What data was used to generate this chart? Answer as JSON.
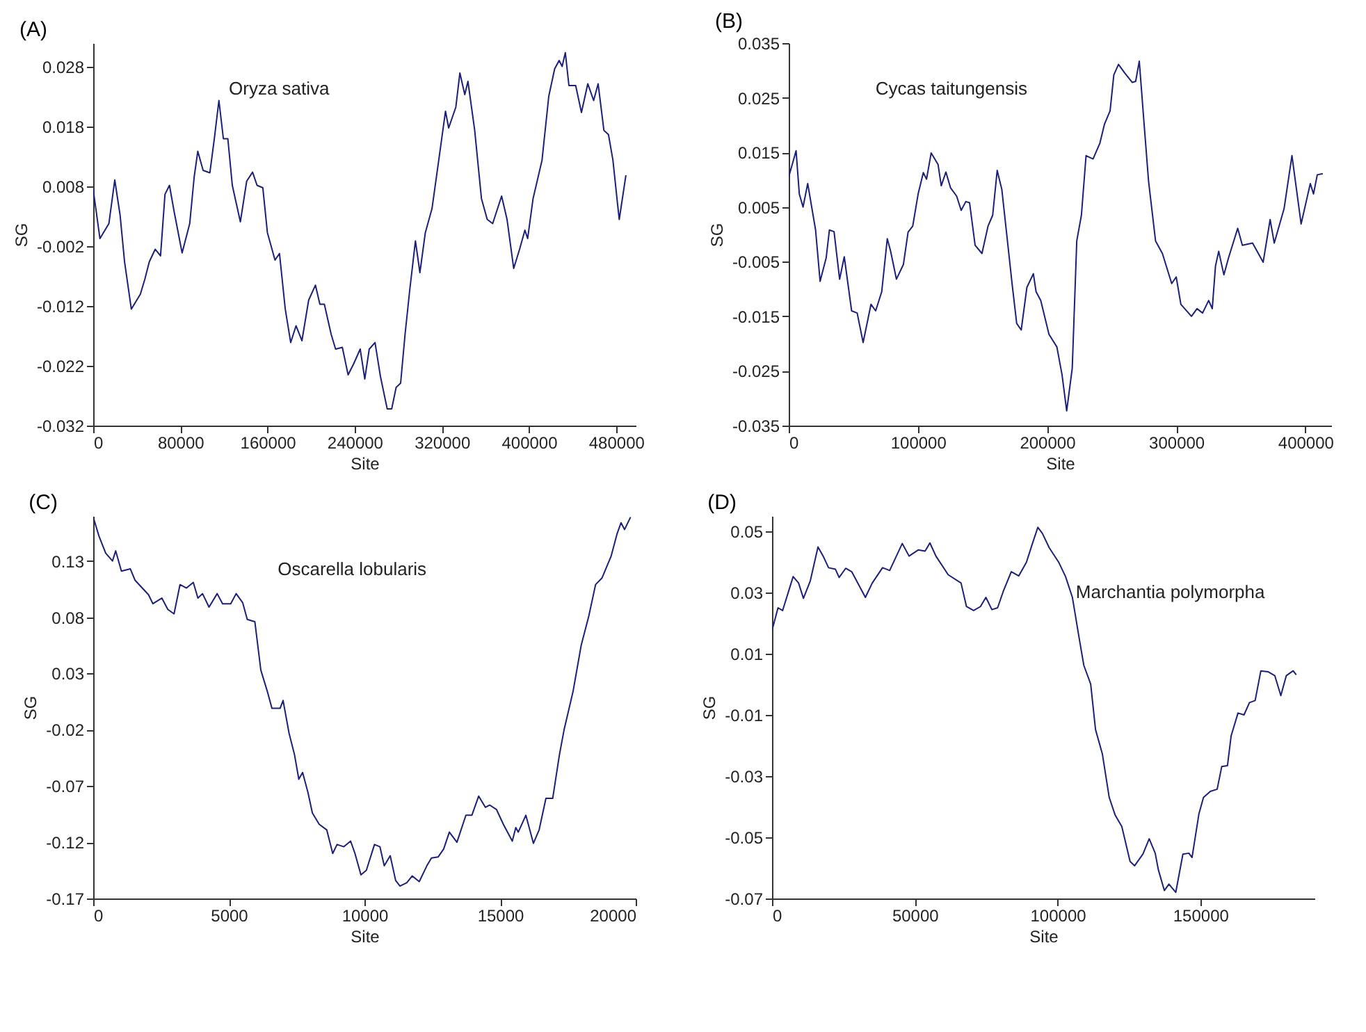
{
  "chart_data": [
    {
      "type": "line",
      "title": "(A)",
      "xlabel": "Site",
      "ylabel": "SG",
      "annotations": [
        "Oryza sativa"
      ],
      "xlim": [
        0,
        498000
      ],
      "xticks": [
        0,
        80000,
        160000,
        240000,
        320000,
        400000,
        480000
      ],
      "ylim": [
        -0.032,
        0.032
      ],
      "yticks": [
        -0.032,
        -0.022,
        -0.012,
        -0.002,
        0.008,
        0.018,
        0.028
      ],
      "grid": false,
      "series": [
        {
          "color": "#1c1f7a",
          "x": [
            0,
            6200,
            14400,
            19800,
            24700,
            28800,
            35000,
            43300,
            47400,
            51500,
            56900,
            61800,
            65900,
            70000,
            74200,
            81600,
            88600,
            92700,
            96000,
            100900,
            107100,
            111200,
            115400,
            119500,
            123600,
            127700,
            135100,
            140900,
            146300,
            150400,
            155700,
            159900,
            166900,
            171000,
            176300,
            181300,
            186200,
            191600,
            197800,
            204000,
            208100,
            212200,
            218400,
            222500,
            228700,
            234000,
            239000,
            245100,
            249300,
            253400,
            258700,
            263700,
            269900,
            274000,
            278100,
            282200,
            286300,
            290400,
            295800,
            299900,
            304900,
            311000,
            317200,
            323400,
            326300,
            332900,
            336600,
            341100,
            344000,
            350200,
            356400,
            361700,
            366700,
            374900,
            379900,
            386000,
            391400,
            396300,
            398800,
            403800,
            412000,
            418200,
            423600,
            427700,
            430500,
            433400,
            436700,
            442900,
            448200,
            454000,
            459400,
            463500,
            468800,
            473000,
            477100,
            481200,
            482900,
            489000
          ],
          "values": [
            0.0075,
            -0.0007,
            0.0018,
            0.0091,
            0.0032,
            -0.0046,
            -0.0125,
            -0.01,
            -0.0075,
            -0.0046,
            -0.0025,
            -0.0036,
            0.0067,
            0.0082,
            0.0039,
            -0.0031,
            0.0018,
            0.0096,
            0.0139,
            0.0107,
            0.0103,
            0.016,
            0.0224,
            0.016,
            0.016,
            0.0082,
            0.0021,
            0.0089,
            0.0104,
            0.0082,
            0.0078,
            0.0003,
            -0.0043,
            -0.0032,
            -0.0125,
            -0.0181,
            -0.0153,
            -0.0178,
            -0.011,
            -0.0085,
            -0.0117,
            -0.0117,
            -0.0167,
            -0.0192,
            -0.0189,
            -0.0235,
            -0.0217,
            -0.0192,
            -0.0242,
            -0.0192,
            -0.0181,
            -0.0238,
            -0.0292,
            -0.0292,
            -0.0256,
            -0.0249,
            -0.0167,
            -0.0096,
            -0.0011,
            -0.0064,
            0.0003,
            0.0043,
            0.0124,
            0.0206,
            0.0178,
            0.0213,
            0.027,
            0.0234,
            0.0256,
            0.0174,
            0.006,
            0.0025,
            0.0018,
            0.0064,
            0.0025,
            -0.0057,
            -0.0025,
            0.0007,
            -0.0007,
            0.006,
            0.0124,
            0.0231,
            0.0277,
            0.0291,
            0.0281,
            0.0304,
            0.0249,
            0.0249,
            0.0204,
            0.0252,
            0.0224,
            0.0252,
            0.0174,
            0.0167,
            0.0124,
            0.0053,
            0.0025,
            0.0099
          ]
        }
      ]
    },
    {
      "type": "line",
      "title": "(B)",
      "xlabel": "Site",
      "ylabel": "SG",
      "annotations": [
        "Cycas taitungensis"
      ],
      "xlim": [
        0,
        420000
      ],
      "xticks": [
        0,
        100000,
        200000,
        300000,
        400000
      ],
      "ylim": [
        -0.035,
        0.035
      ],
      "yticks": [
        -0.035,
        -0.025,
        -0.015,
        -0.005,
        0.005,
        0.015,
        0.025,
        0.035
      ],
      "grid": false,
      "series": [
        {
          "color": "#1c1f7a",
          "x": [
            0,
            5700,
            8200,
            11100,
            14700,
            20800,
            24300,
            29000,
            31500,
            35100,
            39400,
            43000,
            48700,
            53000,
            57600,
            63700,
            67300,
            72000,
            76300,
            78800,
            83400,
            88800,
            92400,
            96000,
            100200,
            104200,
            106700,
            110300,
            115600,
            118100,
            121700,
            125300,
            130000,
            133500,
            137100,
            140000,
            144300,
            149600,
            154300,
            157900,
            161400,
            165000,
            168600,
            172900,
            176500,
            180000,
            184400,
            189400,
            191500,
            195100,
            201500,
            207600,
            211600,
            215200,
            219500,
            223000,
            226600,
            230200,
            235600,
            240900,
            244500,
            248800,
            251700,
            255300,
            259900,
            266000,
            268600,
            271400,
            275000,
            278600,
            284000,
            289300,
            296500,
            300000,
            303600,
            311800,
            316100,
            320400,
            325100,
            327900,
            330400,
            332900,
            336900,
            340500,
            347600,
            351200,
            359100,
            367300,
            372700,
            375900,
            383500,
            389600,
            396700,
            401300,
            403800,
            406300,
            409200,
            413500
          ],
          "values": [
            0.0105,
            0.0153,
            0.0074,
            0.005,
            0.0093,
            0.0008,
            -0.0086,
            -0.0043,
            0.0008,
            0.0005,
            -0.0082,
            -0.0041,
            -0.014,
            -0.0144,
            -0.0198,
            -0.0128,
            -0.014,
            -0.0105,
            -0.0008,
            -0.003,
            -0.0082,
            -0.0055,
            0.0004,
            0.0015,
            0.0074,
            0.0113,
            0.0101,
            0.0149,
            0.0128,
            0.0089,
            0.0114,
            0.0085,
            0.007,
            0.0044,
            0.006,
            0.0058,
            -0.002,
            -0.0035,
            0.0015,
            0.0035,
            0.0117,
            0.0082,
            0.0004,
            -0.009,
            -0.0163,
            -0.0175,
            -0.0097,
            -0.0072,
            -0.0105,
            -0.0121,
            -0.0183,
            -0.0206,
            -0.0257,
            -0.0323,
            -0.0245,
            -0.0012,
            0.0035,
            0.0144,
            0.0138,
            0.0167,
            0.0202,
            0.0226,
            0.0292,
            0.0311,
            0.0296,
            0.0278,
            0.028,
            0.0317,
            0.0206,
            0.0097,
            -0.0012,
            -0.0035,
            -0.009,
            -0.0078,
            -0.0128,
            -0.015,
            -0.0136,
            -0.0144,
            -0.0121,
            -0.0136,
            -0.0058,
            -0.0031,
            -0.0074,
            -0.0043,
            0.0011,
            -0.002,
            -0.0016,
            -0.0051,
            0.0027,
            -0.0016,
            0.0047,
            0.0144,
            0.0019,
            0.0067,
            0.0093,
            0.0074,
            0.0109,
            0.0111
          ]
        }
      ]
    },
    {
      "type": "line",
      "title": "(C)",
      "xlabel": "Site",
      "ylabel": "SG",
      "annotations": [
        "Oscarella lobularis"
      ],
      "xlim": [
        0,
        20000
      ],
      "xticks": [
        0,
        5000,
        10000,
        15000,
        20000
      ],
      "ylim": [
        -0.17,
        0.17
      ],
      "yticks": [
        -0.17,
        -0.12,
        -0.07,
        -0.02,
        0.03,
        0.08,
        0.13
      ],
      "grid": false,
      "series": [
        {
          "color": "#1c1f7a",
          "x": [
            0,
            215,
            460,
            710,
            830,
            1040,
            1370,
            1540,
            2040,
            2200,
            2530,
            2750,
            2980,
            3200,
            3440,
            3690,
            3860,
            4030,
            4270,
            4570,
            4770,
            5070,
            5270,
            5510,
            5680,
            5960,
            6180,
            6420,
            6590,
            6890,
            7000,
            7220,
            7420,
            7580,
            7720,
            7920,
            8080,
            8330,
            8610,
            8830,
            8990,
            9240,
            9490,
            9650,
            9870,
            10070,
            10370,
            10570,
            10730,
            10950,
            11150,
            11310,
            11560,
            11760,
            12020,
            12300,
            12470,
            12720,
            12920,
            13130,
            13410,
            13740,
            13960,
            14210,
            14460,
            14620,
            14870,
            15120,
            15450,
            15580,
            15670,
            15950,
            16230,
            16440,
            16690,
            16940,
            17190,
            17360,
            17690,
            17990,
            18270,
            18520,
            18760,
            19090,
            19310,
            19460,
            19590,
            19810
          ],
          "values": [
            0.169,
            0.152,
            0.137,
            0.13,
            0.139,
            0.121,
            0.123,
            0.113,
            0.1,
            0.092,
            0.097,
            0.087,
            0.083,
            0.109,
            0.106,
            0.111,
            0.097,
            0.101,
            0.089,
            0.101,
            0.092,
            0.092,
            0.101,
            0.093,
            0.078,
            0.076,
            0.033,
            0.014,
            -0.001,
            -0.001,
            0.006,
            -0.023,
            -0.042,
            -0.064,
            -0.058,
            -0.076,
            -0.094,
            -0.104,
            -0.109,
            -0.13,
            -0.122,
            -0.124,
            -0.119,
            -0.13,
            -0.149,
            -0.145,
            -0.122,
            -0.124,
            -0.141,
            -0.132,
            -0.154,
            -0.159,
            -0.156,
            -0.15,
            -0.155,
            -0.141,
            -0.134,
            -0.133,
            -0.126,
            -0.111,
            -0.12,
            -0.096,
            -0.096,
            -0.079,
            -0.089,
            -0.087,
            -0.091,
            -0.104,
            -0.119,
            -0.107,
            -0.111,
            -0.096,
            -0.121,
            -0.109,
            -0.081,
            -0.081,
            -0.042,
            -0.02,
            0.014,
            0.055,
            0.081,
            0.109,
            0.115,
            0.134,
            0.154,
            0.164,
            0.158,
            0.169
          ]
        }
      ]
    },
    {
      "type": "line",
      "title": "(D)",
      "xlabel": "Site",
      "ylabel": "SG",
      "annotations": [
        "Marchantia polymorpha"
      ],
      "xlim": [
        0,
        190000
      ],
      "xticks": [
        0,
        50000,
        100000,
        150000
      ],
      "ylim": [
        -0.07,
        0.055
      ],
      "yticks": [
        -0.07,
        -0.05,
        -0.03,
        -0.01,
        0.01,
        0.03,
        0.05
      ],
      "grid": false,
      "series": [
        {
          "color": "#1c1f7a",
          "x": [
            0,
            2100,
            3700,
            7400,
            9300,
            11000,
            13400,
            16100,
            17900,
            19800,
            22200,
            23500,
            25800,
            27900,
            32700,
            35100,
            38700,
            41200,
            45600,
            48000,
            51200,
            53600,
            55300,
            57400,
            61700,
            66200,
            68100,
            70600,
            73000,
            74900,
            77000,
            79000,
            81000,
            83800,
            86400,
            89100,
            91200,
            93100,
            94700,
            97100,
            100400,
            102800,
            105200,
            107600,
            109200,
            111600,
            113300,
            115700,
            118100,
            120200,
            122500,
            125400,
            127000,
            129900,
            132100,
            134200,
            135300,
            137400,
            139000,
            141400,
            143900,
            146000,
            147100,
            149500,
            151100,
            153500,
            155900,
            157500,
            159500,
            160800,
            163200,
            165300,
            167200,
            169200,
            171200,
            173700,
            176100,
            178200,
            180100,
            182500,
            183600
          ],
          "values": [
            0.0176,
            0.025,
            0.0241,
            0.0352,
            0.0331,
            0.0281,
            0.0338,
            0.0449,
            0.0419,
            0.0381,
            0.0376,
            0.0349,
            0.0379,
            0.0368,
            0.0284,
            0.0331,
            0.0381,
            0.0372,
            0.046,
            0.0419,
            0.0439,
            0.0435,
            0.0462,
            0.0419,
            0.0358,
            0.0331,
            0.0254,
            0.0241,
            0.0254,
            0.0284,
            0.0244,
            0.025,
            0.0304,
            0.0368,
            0.0354,
            0.0399,
            0.046,
            0.0513,
            0.0493,
            0.0446,
            0.0399,
            0.0352,
            0.0284,
            0.0149,
            0.0062,
            0.0001,
            -0.0148,
            -0.0228,
            -0.037,
            -0.0428,
            -0.0465,
            -0.0579,
            -0.0593,
            -0.0555,
            -0.0505,
            -0.0552,
            -0.0606,
            -0.0674,
            -0.0653,
            -0.068,
            -0.0555,
            -0.0552,
            -0.0566,
            -0.0424,
            -0.037,
            -0.035,
            -0.0343,
            -0.0269,
            -0.0266,
            -0.0168,
            -0.0094,
            -0.01,
            -0.006,
            -0.0053,
            0.0044,
            0.0041,
            0.0028,
            -0.0037,
            0.0028,
            0.0044,
            0.0031
          ]
        }
      ]
    }
  ]
}
